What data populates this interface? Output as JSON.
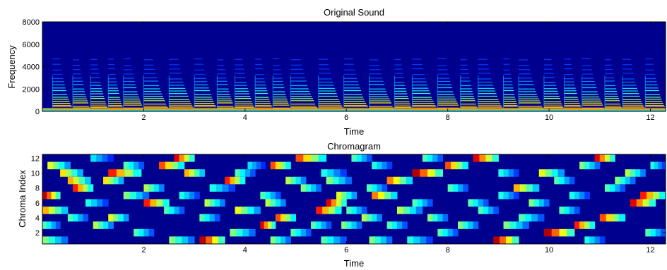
{
  "chart_data": [
    {
      "type": "heatmap",
      "title": "Original Sound",
      "xlabel": "Time",
      "ylabel": "Frequency",
      "xlim": [
        0,
        12.3
      ],
      "ylim": [
        0,
        8000
      ],
      "xticks": [
        2,
        4,
        6,
        8,
        10,
        12
      ],
      "yticks": [
        0,
        2000,
        4000,
        6000,
        8000
      ],
      "colormap": "jet",
      "background_color": "#00008f",
      "harmonic_bands_hz": [
        150,
        300,
        450,
        650,
        850,
        1050,
        1250,
        1500,
        1750,
        2000,
        2300,
        2600,
        2900,
        3300,
        3700,
        4100,
        4600
      ],
      "note_onsets": [
        0.2,
        0.6,
        0.95,
        1.3,
        1.6,
        2.0,
        2.5,
        3.0,
        3.45,
        3.8,
        4.2,
        4.55,
        4.9,
        5.45,
        5.95,
        6.45,
        6.95,
        7.3,
        7.8,
        8.25,
        8.6,
        9.1,
        9.4,
        9.9,
        10.3,
        10.65,
        11.1,
        11.45,
        11.9
      ],
      "grid": false
    },
    {
      "type": "heatmap",
      "title": "Chromagram",
      "xlabel": "Time",
      "ylabel": "Chroma Index",
      "xlim": [
        0,
        12.3
      ],
      "ylim": [
        0.5,
        12.5
      ],
      "xticks": [
        2,
        4,
        6,
        8,
        10,
        12
      ],
      "yticks": [
        2,
        4,
        6,
        8,
        10,
        12
      ],
      "colormap": "jet",
      "background_color": "#00008f",
      "note_events": [
        {
          "start": 0.0,
          "end": 0.35,
          "chroma": 7,
          "value": 0.95
        },
        {
          "start": 0.0,
          "end": 0.5,
          "chroma": 5,
          "value": 0.7
        },
        {
          "start": 0.0,
          "end": 0.35,
          "chroma": 3,
          "value": 0.45
        },
        {
          "start": 0.0,
          "end": 0.5,
          "chroma": 1,
          "value": 0.5
        },
        {
          "start": 0.1,
          "end": 0.55,
          "chroma": 11,
          "value": 0.6
        },
        {
          "start": 0.35,
          "end": 0.8,
          "chroma": 10,
          "value": 0.65
        },
        {
          "start": 0.5,
          "end": 0.95,
          "chroma": 9,
          "value": 0.7
        },
        {
          "start": 0.5,
          "end": 0.9,
          "chroma": 4,
          "value": 0.45
        },
        {
          "start": 0.6,
          "end": 1.0,
          "chroma": 8,
          "value": 0.85
        },
        {
          "start": 0.85,
          "end": 1.3,
          "chroma": 6,
          "value": 0.4
        },
        {
          "start": 0.95,
          "end": 1.4,
          "chroma": 12,
          "value": 0.35
        },
        {
          "start": 1.0,
          "end": 1.4,
          "chroma": 3,
          "value": 0.55
        },
        {
          "start": 1.2,
          "end": 1.6,
          "chroma": 9,
          "value": 0.65
        },
        {
          "start": 1.3,
          "end": 1.7,
          "chroma": 4,
          "value": 0.6
        },
        {
          "start": 1.3,
          "end": 1.95,
          "chroma": 10,
          "value": 0.85
        },
        {
          "start": 1.6,
          "end": 2.0,
          "chroma": 11,
          "value": 0.45
        },
        {
          "start": 1.6,
          "end": 2.1,
          "chroma": 7,
          "value": 0.5
        },
        {
          "start": 1.8,
          "end": 2.2,
          "chroma": 2,
          "value": 0.45
        },
        {
          "start": 2.0,
          "end": 2.4,
          "chroma": 8,
          "value": 0.55
        },
        {
          "start": 2.0,
          "end": 2.5,
          "chroma": 6,
          "value": 0.85
        },
        {
          "start": 2.3,
          "end": 2.8,
          "chroma": 11,
          "value": 0.8
        },
        {
          "start": 2.4,
          "end": 2.8,
          "chroma": 5,
          "value": 0.45
        },
        {
          "start": 2.5,
          "end": 3.0,
          "chroma": 1,
          "value": 0.5
        },
        {
          "start": 2.6,
          "end": 3.0,
          "chroma": 12,
          "value": 0.9
        },
        {
          "start": 2.7,
          "end": 3.1,
          "chroma": 7,
          "value": 0.4
        },
        {
          "start": 2.8,
          "end": 3.2,
          "chroma": 10,
          "value": 0.7
        },
        {
          "start": 3.1,
          "end": 3.6,
          "chroma": 1,
          "value": 0.95
        },
        {
          "start": 3.1,
          "end": 3.5,
          "chroma": 4,
          "value": 0.45
        },
        {
          "start": 3.2,
          "end": 3.6,
          "chroma": 6,
          "value": 0.55
        },
        {
          "start": 3.3,
          "end": 3.8,
          "chroma": 8,
          "value": 0.4
        },
        {
          "start": 3.6,
          "end": 4.0,
          "chroma": 9,
          "value": 0.85
        },
        {
          "start": 3.7,
          "end": 4.2,
          "chroma": 2,
          "value": 0.5
        },
        {
          "start": 3.8,
          "end": 4.2,
          "chroma": 10,
          "value": 0.45
        },
        {
          "start": 3.8,
          "end": 4.3,
          "chroma": 5,
          "value": 0.6
        },
        {
          "start": 4.05,
          "end": 4.4,
          "chroma": 11,
          "value": 0.35
        },
        {
          "start": 4.3,
          "end": 4.6,
          "chroma": 3,
          "value": 0.9
        },
        {
          "start": 4.3,
          "end": 4.7,
          "chroma": 7,
          "value": 0.45
        },
        {
          "start": 4.4,
          "end": 4.8,
          "chroma": 6,
          "value": 0.55
        },
        {
          "start": 4.5,
          "end": 4.9,
          "chroma": 11,
          "value": 0.8
        },
        {
          "start": 4.5,
          "end": 4.9,
          "chroma": 1,
          "value": 0.5
        },
        {
          "start": 4.6,
          "end": 5.0,
          "chroma": 4,
          "value": 0.8
        },
        {
          "start": 4.8,
          "end": 5.2,
          "chroma": 9,
          "value": 0.55
        },
        {
          "start": 4.9,
          "end": 5.3,
          "chroma": 2,
          "value": 0.45
        },
        {
          "start": 5.0,
          "end": 5.6,
          "chroma": 12,
          "value": 0.8
        },
        {
          "start": 5.1,
          "end": 5.5,
          "chroma": 8,
          "value": 0.5
        },
        {
          "start": 5.3,
          "end": 5.7,
          "chroma": 3,
          "value": 0.45
        },
        {
          "start": 5.4,
          "end": 5.9,
          "chroma": 5,
          "value": 0.85
        },
        {
          "start": 5.5,
          "end": 6.0,
          "chroma": 10,
          "value": 0.4
        },
        {
          "start": 5.5,
          "end": 6.0,
          "chroma": 1,
          "value": 0.45
        },
        {
          "start": 5.6,
          "end": 6.1,
          "chroma": 9,
          "value": 0.5
        },
        {
          "start": 5.6,
          "end": 6.0,
          "chroma": 6,
          "value": 0.9
        },
        {
          "start": 5.8,
          "end": 6.2,
          "chroma": 7,
          "value": 0.6
        },
        {
          "start": 5.9,
          "end": 6.3,
          "chroma": 3,
          "value": 0.5
        },
        {
          "start": 6.0,
          "end": 6.4,
          "chroma": 5,
          "value": 0.45
        },
        {
          "start": 6.1,
          "end": 6.5,
          "chroma": 12,
          "value": 0.45
        },
        {
          "start": 6.3,
          "end": 6.7,
          "chroma": 4,
          "value": 0.55
        },
        {
          "start": 6.4,
          "end": 6.8,
          "chroma": 8,
          "value": 0.45
        },
        {
          "start": 6.45,
          "end": 6.9,
          "chroma": 1,
          "value": 0.5
        },
        {
          "start": 6.5,
          "end": 6.9,
          "chroma": 11,
          "value": 0.4
        },
        {
          "start": 6.5,
          "end": 7.0,
          "chroma": 7,
          "value": 0.75
        },
        {
          "start": 6.8,
          "end": 7.2,
          "chroma": 3,
          "value": 0.45
        },
        {
          "start": 6.8,
          "end": 7.3,
          "chroma": 9,
          "value": 0.75
        },
        {
          "start": 7.0,
          "end": 7.5,
          "chroma": 5,
          "value": 0.55
        },
        {
          "start": 7.2,
          "end": 7.7,
          "chroma": 1,
          "value": 0.4
        },
        {
          "start": 7.3,
          "end": 7.7,
          "chroma": 6,
          "value": 0.45
        },
        {
          "start": 7.3,
          "end": 7.9,
          "chroma": 10,
          "value": 0.95
        },
        {
          "start": 7.5,
          "end": 7.9,
          "chroma": 12,
          "value": 0.45
        },
        {
          "start": 7.6,
          "end": 8.0,
          "chroma": 4,
          "value": 0.5
        },
        {
          "start": 7.8,
          "end": 8.2,
          "chroma": 2,
          "value": 0.45
        },
        {
          "start": 7.95,
          "end": 8.4,
          "chroma": 11,
          "value": 0.8
        },
        {
          "start": 8.0,
          "end": 8.4,
          "chroma": 8,
          "value": 0.45
        },
        {
          "start": 8.2,
          "end": 8.6,
          "chroma": 3,
          "value": 0.5
        },
        {
          "start": 8.4,
          "end": 8.8,
          "chroma": 6,
          "value": 0.45
        },
        {
          "start": 8.5,
          "end": 9.0,
          "chroma": 12,
          "value": 0.9
        },
        {
          "start": 8.6,
          "end": 9.0,
          "chroma": 5,
          "value": 0.45
        },
        {
          "start": 8.9,
          "end": 9.4,
          "chroma": 1,
          "value": 0.95
        },
        {
          "start": 9.0,
          "end": 9.4,
          "chroma": 7,
          "value": 0.4
        },
        {
          "start": 9.0,
          "end": 9.4,
          "chroma": 10,
          "value": 0.4
        },
        {
          "start": 9.1,
          "end": 9.6,
          "chroma": 3,
          "value": 0.5
        },
        {
          "start": 9.3,
          "end": 9.8,
          "chroma": 8,
          "value": 0.7
        },
        {
          "start": 9.4,
          "end": 9.9,
          "chroma": 4,
          "value": 0.45
        },
        {
          "start": 9.6,
          "end": 10.0,
          "chroma": 6,
          "value": 0.5
        },
        {
          "start": 9.8,
          "end": 10.3,
          "chroma": 10,
          "value": 0.6
        },
        {
          "start": 9.9,
          "end": 10.5,
          "chroma": 2,
          "value": 0.95
        },
        {
          "start": 10.1,
          "end": 10.5,
          "chroma": 9,
          "value": 0.45
        },
        {
          "start": 10.2,
          "end": 10.6,
          "chroma": 5,
          "value": 0.45
        },
        {
          "start": 10.4,
          "end": 10.8,
          "chroma": 7,
          "value": 0.4
        },
        {
          "start": 10.5,
          "end": 10.9,
          "chroma": 3,
          "value": 0.85
        },
        {
          "start": 10.6,
          "end": 11.0,
          "chroma": 11,
          "value": 0.5
        },
        {
          "start": 10.7,
          "end": 11.1,
          "chroma": 1,
          "value": 0.4
        },
        {
          "start": 10.9,
          "end": 11.3,
          "chroma": 12,
          "value": 0.9
        },
        {
          "start": 11.0,
          "end": 11.5,
          "chroma": 4,
          "value": 0.8
        },
        {
          "start": 11.1,
          "end": 11.5,
          "chroma": 8,
          "value": 0.45
        },
        {
          "start": 11.3,
          "end": 11.7,
          "chroma": 9,
          "value": 0.5
        },
        {
          "start": 11.5,
          "end": 11.9,
          "chroma": 10,
          "value": 0.55
        },
        {
          "start": 11.6,
          "end": 12.1,
          "chroma": 6,
          "value": 0.9
        },
        {
          "start": 11.8,
          "end": 12.3,
          "chroma": 7,
          "value": 0.85
        },
        {
          "start": 11.9,
          "end": 12.3,
          "chroma": 2,
          "value": 0.45
        },
        {
          "start": 12.0,
          "end": 12.3,
          "chroma": 11,
          "value": 0.4
        }
      ],
      "grid": false
    }
  ]
}
